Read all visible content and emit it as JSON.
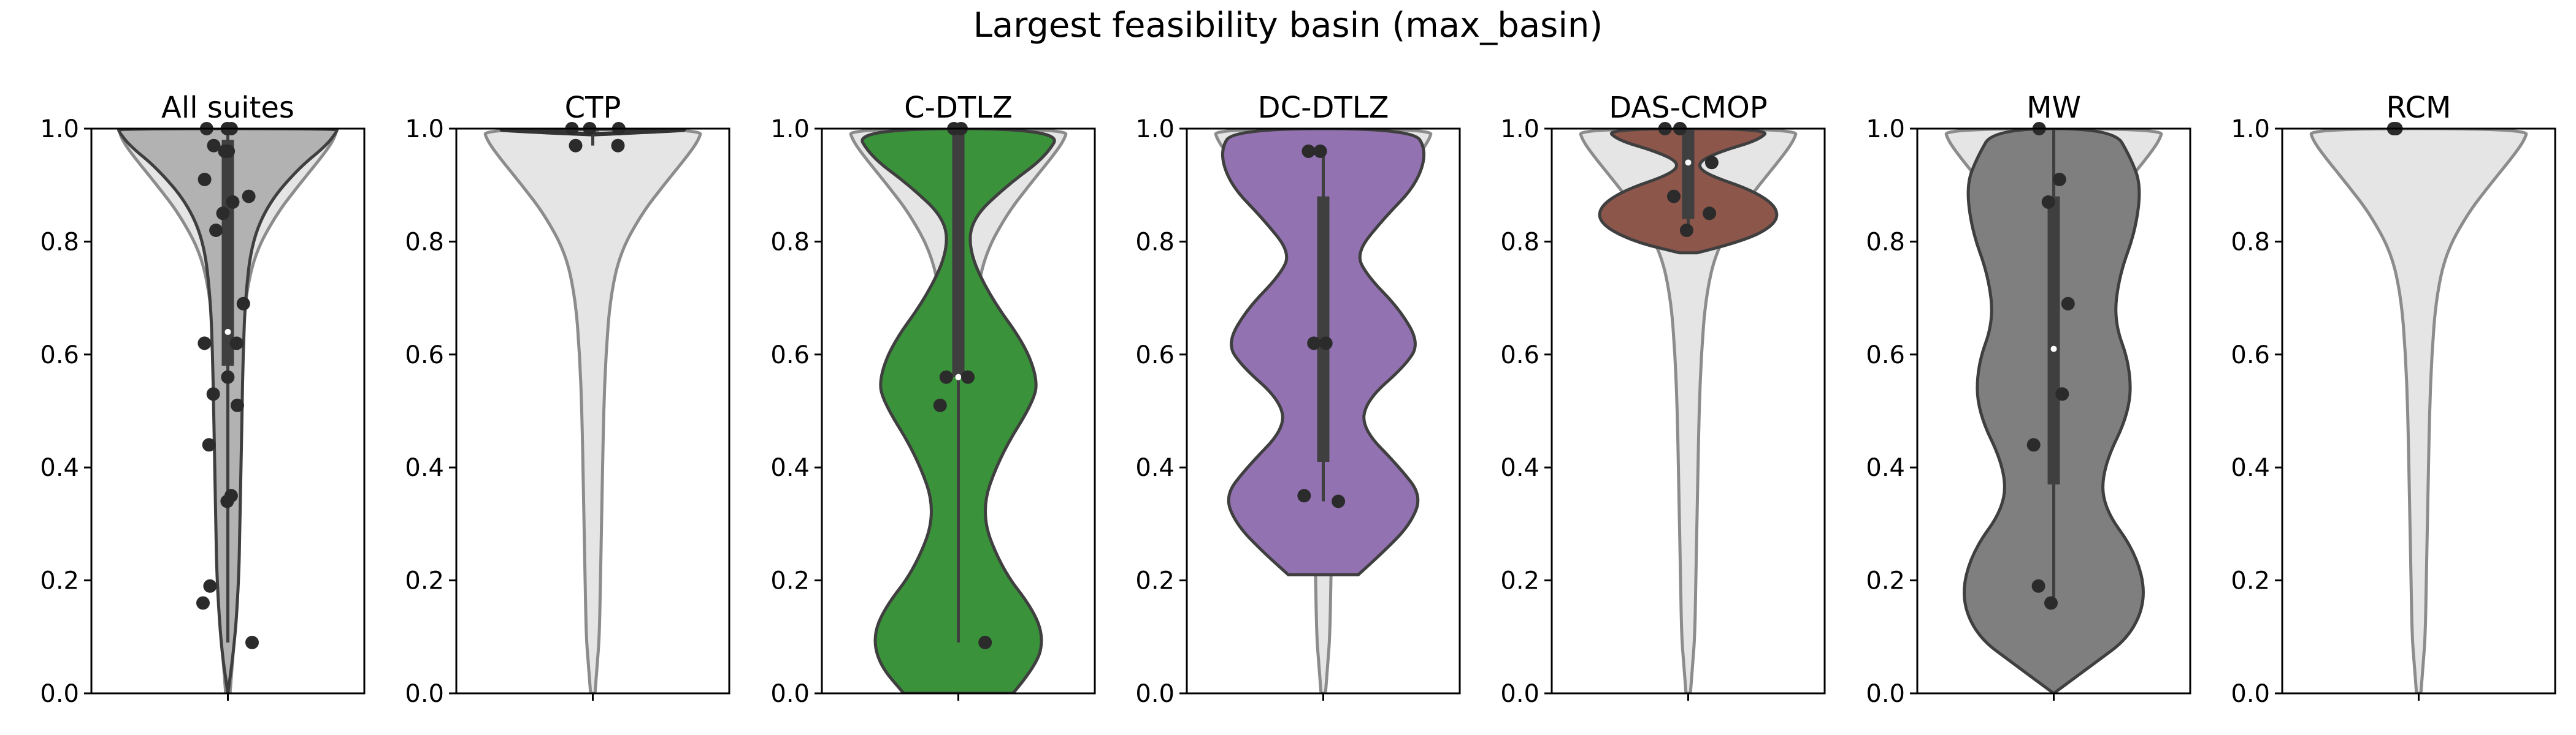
{
  "chart_data": {
    "type": "violin",
    "title": "Largest feasibility basin (max_basin)",
    "ylim": [
      0,
      1
    ],
    "yticks": [
      0,
      0.2,
      0.4,
      0.6,
      0.8,
      1.0
    ],
    "ytick_labels": [
      "0.0",
      "0.2",
      "0.4",
      "0.6",
      "0.8",
      "1.0"
    ],
    "colors": {
      "background_violin_fill": "#e5e5e5",
      "background_violin_edge": "#8c8c8c",
      "violin_edge": "#3f3f3f",
      "box": "#3f3f3f",
      "points": "#2b2b2b",
      "median_dot": "#ffffff"
    },
    "panels": [
      {
        "title": "All suites",
        "color": "#b2b2b2",
        "overlay": true,
        "box": {
          "q1": 0.58,
          "median": 0.64,
          "q3": 0.98,
          "whisker_low": 0.09,
          "whisker_high": 1.0
        },
        "points": [
          1.0,
          1.0,
          1.0,
          0.97,
          0.96,
          0.96,
          0.91,
          0.88,
          0.87,
          0.85,
          0.82,
          0.69,
          0.62,
          0.62,
          0.56,
          0.53,
          0.51,
          0.44,
          0.35,
          0.34,
          0.19,
          0.16,
          0.09
        ],
        "density": [
          [
            0.0,
            0.0
          ],
          [
            0.08,
            0.06
          ],
          [
            0.2,
            0.1
          ],
          [
            0.3,
            0.11
          ],
          [
            0.4,
            0.12
          ],
          [
            0.5,
            0.13
          ],
          [
            0.6,
            0.14
          ],
          [
            0.7,
            0.16
          ],
          [
            0.8,
            0.22
          ],
          [
            0.87,
            0.38
          ],
          [
            0.93,
            0.65
          ],
          [
            0.97,
            0.9
          ],
          [
            0.995,
            1.0
          ],
          [
            1.0,
            1.0
          ]
        ]
      },
      {
        "title": "CTP",
        "color": "#555555",
        "overlay": false,
        "box": {
          "q1": 0.995,
          "median": 1.0,
          "q3": 1.0,
          "whisker_low": 0.97,
          "whisker_high": 1.0
        },
        "points": [
          1.0,
          1.0,
          1.0,
          0.97,
          0.97
        ],
        "density": [
          [
            0.99,
            0.0
          ],
          [
            0.995,
            0.6
          ],
          [
            1.0,
            1.0
          ]
        ]
      },
      {
        "title": "C-DTLZ",
        "color": "#3a923a",
        "overlay": true,
        "box": {
          "q1": 0.56,
          "median": 0.56,
          "q3": 1.0,
          "whisker_low": 0.09,
          "whisker_high": 1.0
        },
        "points": [
          1.0,
          1.0,
          0.56,
          0.56,
          0.51,
          0.09
        ],
        "density": [
          [
            0.0,
            0.5
          ],
          [
            0.05,
            0.72
          ],
          [
            0.1,
            0.78
          ],
          [
            0.15,
            0.68
          ],
          [
            0.22,
            0.4
          ],
          [
            0.32,
            0.2
          ],
          [
            0.42,
            0.38
          ],
          [
            0.52,
            0.7
          ],
          [
            0.56,
            0.72
          ],
          [
            0.62,
            0.6
          ],
          [
            0.7,
            0.3
          ],
          [
            0.78,
            0.1
          ],
          [
            0.84,
            0.12
          ],
          [
            0.9,
            0.45
          ],
          [
            0.95,
            0.8
          ],
          [
            1.0,
            0.95
          ]
        ]
      },
      {
        "title": "DC-DTLZ",
        "color": "#9372b2",
        "overlay": true,
        "box": {
          "q1": 0.41,
          "median": 0.62,
          "q3": 0.88,
          "whisker_low": 0.34,
          "whisker_high": 0.96
        },
        "points": [
          0.96,
          0.96,
          0.62,
          0.62,
          0.35,
          0.34
        ],
        "density": [
          [
            0.21,
            0.32
          ],
          [
            0.25,
            0.55
          ],
          [
            0.3,
            0.8
          ],
          [
            0.35,
            0.9
          ],
          [
            0.4,
            0.7
          ],
          [
            0.47,
            0.35
          ],
          [
            0.52,
            0.4
          ],
          [
            0.58,
            0.75
          ],
          [
            0.62,
            0.88
          ],
          [
            0.68,
            0.7
          ],
          [
            0.74,
            0.4
          ],
          [
            0.78,
            0.3
          ],
          [
            0.84,
            0.55
          ],
          [
            0.9,
            0.85
          ],
          [
            0.96,
            0.95
          ],
          [
            1.0,
            0.82
          ]
        ]
      },
      {
        "title": "DAS-CMOP",
        "color": "#8c564b",
        "overlay": true,
        "box": {
          "q1": 0.84,
          "median": 0.94,
          "q3": 1.0,
          "whisker_low": 0.82,
          "whisker_high": 1.0
        },
        "points": [
          1.0,
          1.0,
          1.0,
          0.94,
          0.88,
          0.85,
          0.82
        ],
        "density": [
          [
            0.78,
            0.08
          ],
          [
            0.8,
            0.5
          ],
          [
            0.83,
            0.8
          ],
          [
            0.86,
            0.82
          ],
          [
            0.89,
            0.6
          ],
          [
            0.92,
            0.15
          ],
          [
            0.94,
            0.08
          ],
          [
            0.96,
            0.3
          ],
          [
            0.98,
            0.65
          ],
          [
            1.0,
            0.75
          ]
        ]
      },
      {
        "title": "MW",
        "color": "#7f7f7f",
        "overlay": true,
        "box": {
          "q1": 0.37,
          "median": 0.61,
          "q3": 0.88,
          "whisker_low": 0.16,
          "whisker_high": 1.0
        },
        "points": [
          1.0,
          0.91,
          0.87,
          0.69,
          0.53,
          0.44,
          0.19,
          0.16
        ],
        "density": [
          [
            0.0,
            0.0
          ],
          [
            0.05,
            0.35
          ],
          [
            0.1,
            0.7
          ],
          [
            0.17,
            0.85
          ],
          [
            0.25,
            0.75
          ],
          [
            0.33,
            0.45
          ],
          [
            0.4,
            0.45
          ],
          [
            0.5,
            0.7
          ],
          [
            0.58,
            0.7
          ],
          [
            0.66,
            0.55
          ],
          [
            0.74,
            0.6
          ],
          [
            0.82,
            0.75
          ],
          [
            0.9,
            0.8
          ],
          [
            0.95,
            0.7
          ],
          [
            1.0,
            0.55
          ]
        ]
      },
      {
        "title": "RCM",
        "color": "#555555",
        "overlay": false,
        "box": null,
        "points": [
          1.0,
          1.0
        ],
        "density": []
      }
    ],
    "background_density": [
      [
        0.0,
        0.02
      ],
      [
        0.05,
        0.04
      ],
      [
        0.1,
        0.06
      ],
      [
        0.2,
        0.07
      ],
      [
        0.3,
        0.08
      ],
      [
        0.4,
        0.09
      ],
      [
        0.5,
        0.1
      ],
      [
        0.6,
        0.12
      ],
      [
        0.7,
        0.16
      ],
      [
        0.78,
        0.25
      ],
      [
        0.85,
        0.45
      ],
      [
        0.9,
        0.65
      ],
      [
        0.95,
        0.86
      ],
      [
        0.98,
        0.97
      ],
      [
        1.0,
        1.0
      ]
    ]
  }
}
